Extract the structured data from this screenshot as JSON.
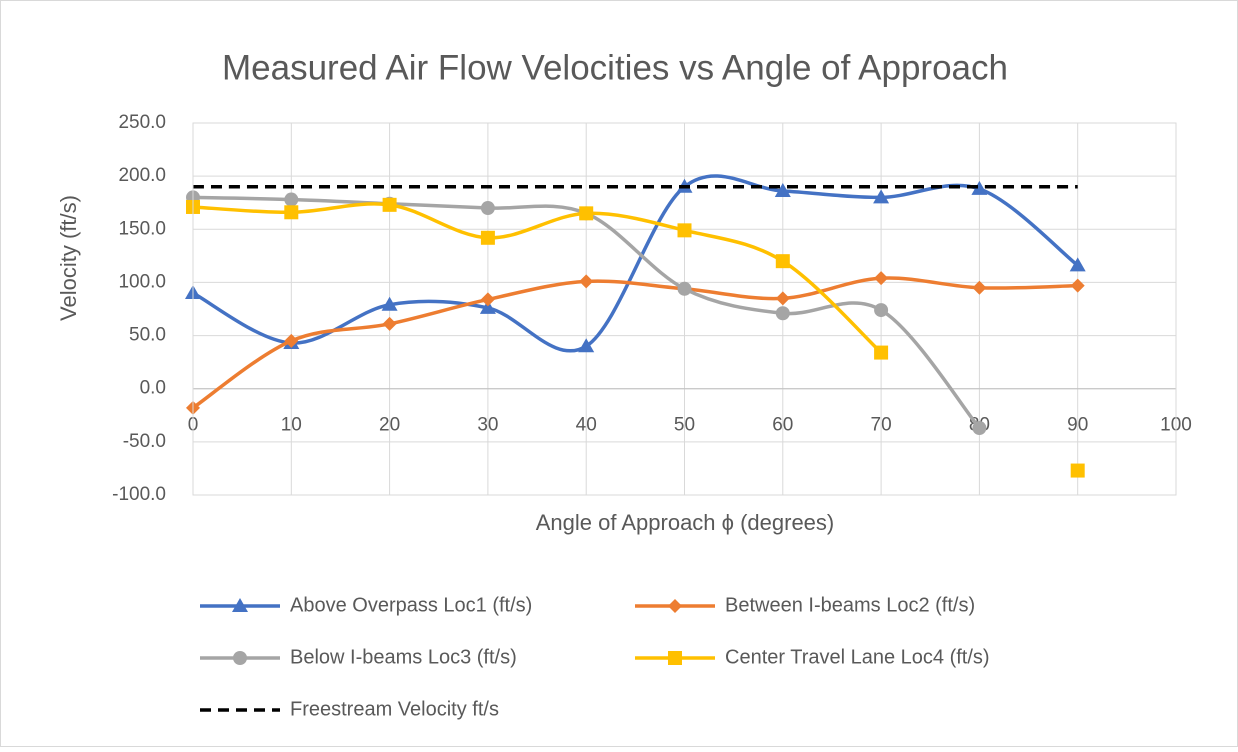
{
  "chart_data": {
    "type": "line",
    "title": "Measured Air Flow Velocities vs Angle of Approach",
    "x_label": "Angle of Approach ϕ (degrees)",
    "y_label": "Velocity (ft/s)",
    "x": [
      0,
      10,
      20,
      30,
      40,
      50,
      60,
      70,
      80,
      90
    ],
    "xlim": [
      0,
      100
    ],
    "xticks": [
      0,
      10,
      20,
      30,
      40,
      50,
      60,
      70,
      80,
      90,
      100
    ],
    "ylim": [
      -100,
      250
    ],
    "yticks": [
      {
        "value": -100,
        "label": "-100.0"
      },
      {
        "value": -50,
        "label": "-50.0"
      },
      {
        "value": 0,
        "label": "0.0"
      },
      {
        "value": 50,
        "label": "50.0"
      },
      {
        "value": 100,
        "label": "100.0"
      },
      {
        "value": 150,
        "label": "150.0"
      },
      {
        "value": 200,
        "label": "200.0"
      },
      {
        "value": 250,
        "label": "250.0"
      }
    ],
    "grid": true,
    "smooth": true,
    "legend": "bottom",
    "series": [
      {
        "name": "Above Overpass Loc1 (ft/s)",
        "color": "#4472c4",
        "marker": "triangle",
        "values": [
          90,
          43,
          79,
          76,
          40,
          190,
          186,
          180,
          188,
          116
        ]
      },
      {
        "name": "Between I-beams Loc2 (ft/s)",
        "color": "#ed7d31",
        "marker": "diamond",
        "values": [
          -18,
          45,
          61,
          84,
          101,
          94,
          85,
          104,
          95,
          97
        ]
      },
      {
        "name": "Below I-beams Loc3 (ft/s)",
        "color": "#a5a5a5",
        "marker": "circle",
        "values": [
          180,
          178,
          174,
          170,
          165,
          94,
          71,
          74,
          -37,
          null
        ]
      },
      {
        "name": "Center Travel Lane Loc4 (ft/s)",
        "color": "#ffc000",
        "marker": "square",
        "values": [
          171,
          166,
          173,
          142,
          165,
          149,
          120,
          34,
          null,
          -77
        ]
      },
      {
        "name": "Freestream Velocity ft/s",
        "color": "#000000",
        "marker": "none",
        "dash": true,
        "values": [
          190,
          190,
          190,
          190,
          190,
          190,
          190,
          190,
          190,
          190
        ]
      }
    ]
  }
}
